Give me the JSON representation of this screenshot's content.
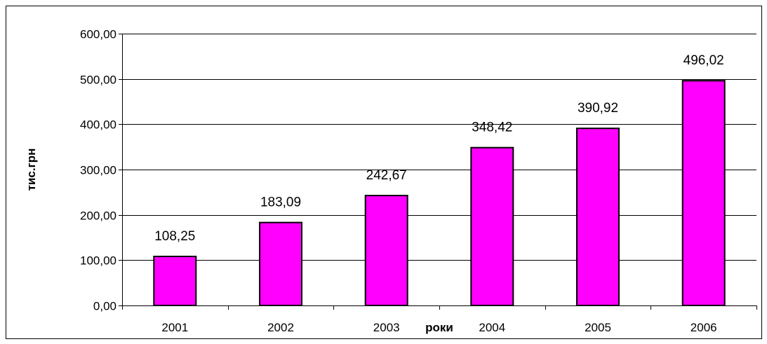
{
  "chart_data": {
    "type": "bar",
    "categories": [
      "2001",
      "2002",
      "2003",
      "2004",
      "2005",
      "2006"
    ],
    "values": [
      108.25,
      183.09,
      242.67,
      348.42,
      390.92,
      496.02
    ],
    "value_labels": [
      "108,25",
      "183,09",
      "242,67",
      "348,42",
      "390,92",
      "496,02"
    ],
    "title": "",
    "xlabel": "роки",
    "ylabel": "тис.грн",
    "ylim": [
      0,
      600
    ],
    "yticks": [
      0,
      100,
      200,
      300,
      400,
      500,
      600
    ],
    "ytick_labels": [
      "0,00",
      "100,00",
      "200,00",
      "300,00",
      "400,00",
      "500,00",
      "600,00"
    ],
    "grid": true,
    "legend": "none",
    "bar_color": "#FF00FF",
    "bar_border_color": "#000000",
    "grid_color": "#000000"
  }
}
